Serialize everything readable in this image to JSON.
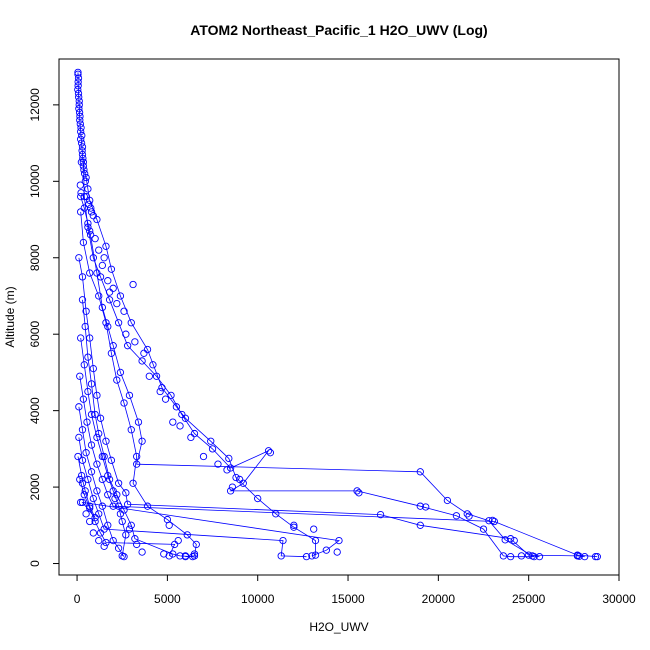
{
  "chart_data": {
    "type": "line",
    "title": "ATOM2 Northeast_Pacific_1 H2O_UWV (Log)",
    "xlabel": "H2O_UWV",
    "ylabel": "Altitude (m)",
    "xlim": [
      -1000,
      30000
    ],
    "ylim": [
      -300,
      13200
    ],
    "x_ticks": [
      0,
      5000,
      10000,
      15000,
      20000,
      25000,
      30000
    ],
    "x_tick_labels": [
      "0",
      "5000",
      "10000",
      "15000",
      "20000",
      "25000",
      "30000"
    ],
    "y_ticks": [
      0,
      2000,
      4000,
      6000,
      8000,
      10000,
      12000
    ],
    "y_tick_labels": [
      "0",
      "2000",
      "4000",
      "6000",
      "8000",
      "10000",
      "12000"
    ],
    "grid": false,
    "series_color": "#0000ff",
    "segments": [
      [
        [
          50,
          12850
        ],
        [
          60,
          12600
        ],
        [
          80,
          12300
        ],
        [
          120,
          12000
        ],
        [
          150,
          11600
        ],
        [
          200,
          11300
        ],
        [
          250,
          11000
        ],
        [
          300,
          10700
        ],
        [
          350,
          10400
        ],
        [
          500,
          10100
        ],
        [
          600,
          9800
        ],
        [
          700,
          9500
        ],
        [
          1100,
          9000
        ],
        [
          1600,
          8300
        ],
        [
          1900,
          7700
        ],
        [
          2400,
          7000
        ],
        [
          3000,
          6300
        ],
        [
          3900,
          5600
        ],
        [
          4700,
          4600
        ],
        [
          5500,
          4100
        ],
        [
          6000,
          3800
        ],
        [
          7400,
          3200
        ],
        [
          8400,
          2750
        ],
        [
          8800,
          2250
        ],
        [
          10000,
          1700
        ],
        [
          11000,
          1300
        ],
        [
          12000,
          950
        ],
        [
          13200,
          600
        ],
        [
          13200,
          220
        ]
      ],
      [
        [
          350,
          10500
        ],
        [
          400,
          9600
        ],
        [
          600,
          8800
        ],
        [
          900,
          8000
        ],
        [
          1300,
          7500
        ],
        [
          1800,
          6900
        ],
        [
          2300,
          6300
        ],
        [
          2800,
          5700
        ],
        [
          3600,
          5300
        ],
        [
          4400,
          4900
        ],
        [
          5200,
          4400
        ],
        [
          5800,
          3900
        ],
        [
          6500,
          3400
        ],
        [
          7500,
          3000
        ],
        [
          8500,
          2500
        ],
        [
          10600,
          2950
        ],
        [
          9200,
          2100
        ],
        [
          8500,
          1900
        ],
        [
          15500,
          1900
        ],
        [
          19000,
          1500
        ],
        [
          21000,
          1250
        ],
        [
          22500,
          900
        ],
        [
          23600,
          200
        ],
        [
          24000,
          180
        ],
        [
          25300,
          180
        ]
      ],
      [
        [
          200,
          9600
        ],
        [
          400,
          9300
        ],
        [
          700,
          8700
        ],
        [
          1100,
          7600
        ],
        [
          1400,
          6700
        ],
        [
          1700,
          6200
        ],
        [
          2000,
          5700
        ],
        [
          2400,
          5000
        ],
        [
          2900,
          4400
        ],
        [
          3400,
          3700
        ],
        [
          3600,
          3200
        ],
        [
          3300,
          2600
        ],
        [
          19000,
          2400
        ],
        [
          20500,
          1650
        ],
        [
          21600,
          1300
        ],
        [
          22800,
          1120
        ],
        [
          23700,
          620
        ],
        [
          25200,
          200
        ],
        [
          25600,
          180
        ]
      ],
      [
        [
          200,
          9200
        ],
        [
          350,
          8400
        ],
        [
          700,
          7600
        ],
        [
          1200,
          7000
        ],
        [
          1600,
          6300
        ],
        [
          1900,
          5500
        ],
        [
          2200,
          4800
        ],
        [
          2600,
          4200
        ],
        [
          3000,
          3500
        ],
        [
          3300,
          2800
        ],
        [
          3100,
          2100
        ],
        [
          3900,
          1500
        ],
        [
          5000,
          1150
        ],
        [
          6100,
          750
        ],
        [
          6600,
          500
        ],
        [
          6500,
          200
        ],
        [
          6000,
          180
        ]
      ],
      [
        [
          100,
          8000
        ],
        [
          300,
          7500
        ],
        [
          500,
          6600
        ],
        [
          700,
          5900
        ],
        [
          900,
          5100
        ],
        [
          1100,
          4400
        ],
        [
          1300,
          3800
        ],
        [
          1600,
          3200
        ],
        [
          1900,
          2700
        ],
        [
          2300,
          2100
        ],
        [
          2700,
          1850
        ],
        [
          2800,
          1550
        ],
        [
          16800,
          1280
        ],
        [
          19000,
          1000
        ],
        [
          24000,
          650
        ],
        [
          25000,
          220
        ],
        [
          27700,
          200
        ],
        [
          28100,
          180
        ]
      ],
      [
        [
          300,
          6900
        ],
        [
          450,
          6200
        ],
        [
          600,
          5400
        ],
        [
          800,
          4700
        ],
        [
          1000,
          3900
        ],
        [
          1200,
          3400
        ],
        [
          1500,
          2800
        ],
        [
          1800,
          2200
        ],
        [
          2200,
          1800
        ],
        [
          2600,
          1400
        ],
        [
          3000,
          1000
        ],
        [
          3200,
          650
        ],
        [
          5300,
          250
        ],
        [
          5700,
          200
        ],
        [
          6400,
          180
        ]
      ],
      [
        [
          200,
          5900
        ],
        [
          400,
          5200
        ],
        [
          600,
          4500
        ],
        [
          800,
          3900
        ],
        [
          1100,
          3300
        ],
        [
          1400,
          2800
        ],
        [
          1700,
          2300
        ],
        [
          2000,
          1900
        ],
        [
          2300,
          1500
        ],
        [
          2500,
          1100
        ],
        [
          2700,
          750
        ],
        [
          2500,
          200
        ]
      ],
      [
        [
          150,
          4900
        ],
        [
          350,
          4300
        ],
        [
          550,
          3700
        ],
        [
          800,
          3100
        ],
        [
          1100,
          2600
        ],
        [
          1400,
          2200
        ],
        [
          1700,
          1800
        ],
        [
          2000,
          1500
        ],
        [
          23100,
          1100
        ],
        [
          27700,
          220
        ],
        [
          28800,
          180
        ]
      ],
      [
        [
          100,
          4100
        ],
        [
          300,
          3500
        ],
        [
          500,
          2900
        ],
        [
          800,
          2400
        ],
        [
          1100,
          1900
        ],
        [
          1400,
          1500
        ],
        [
          1700,
          1000
        ],
        [
          2000,
          600
        ],
        [
          2300,
          400
        ],
        [
          2600,
          180
        ]
      ],
      [
        [
          100,
          3300
        ],
        [
          300,
          2700
        ],
        [
          600,
          2200
        ],
        [
          900,
          1700
        ],
        [
          1200,
          1300
        ],
        [
          1500,
          900
        ],
        [
          11400,
          600
        ],
        [
          11300,
          200
        ],
        [
          12700,
          180
        ]
      ],
      [
        [
          50,
          2800
        ],
        [
          250,
          2300
        ],
        [
          450,
          1900
        ],
        [
          700,
          1500
        ],
        [
          1000,
          1200
        ],
        [
          300,
          1600
        ],
        [
          14500,
          600
        ],
        [
          13800,
          350
        ],
        [
          13000,
          200
        ]
      ],
      [
        [
          150,
          2200
        ],
        [
          400,
          1800
        ],
        [
          700,
          1450
        ],
        [
          1000,
          1100
        ],
        [
          1300,
          800
        ],
        [
          1600,
          550
        ],
        [
          5400,
          500
        ],
        [
          5100,
          200
        ]
      ]
    ],
    "scatter_points": [
      [
        50,
        12800
      ],
      [
        80,
        12700
      ],
      [
        60,
        12500
      ],
      [
        40,
        12400
      ],
      [
        90,
        12200
      ],
      [
        120,
        12100
      ],
      [
        100,
        11900
      ],
      [
        140,
        11800
      ],
      [
        160,
        11700
      ],
      [
        180,
        11500
      ],
      [
        220,
        11400
      ],
      [
        260,
        11200
      ],
      [
        200,
        11100
      ],
      [
        300,
        10900
      ],
      [
        280,
        10800
      ],
      [
        320,
        10600
      ],
      [
        240,
        10500
      ],
      [
        380,
        10300
      ],
      [
        420,
        10200
      ],
      [
        460,
        10000
      ],
      [
        180,
        9900
      ],
      [
        220,
        9700
      ],
      [
        520,
        9600
      ],
      [
        650,
        9400
      ],
      [
        760,
        9300
      ],
      [
        800,
        9200
      ],
      [
        900,
        9100
      ],
      [
        600,
        8900
      ],
      [
        750,
        8600
      ],
      [
        1000,
        8500
      ],
      [
        1200,
        8200
      ],
      [
        1500,
        8000
      ],
      [
        1400,
        7800
      ],
      [
        1700,
        7400
      ],
      [
        2000,
        7200
      ],
      [
        1800,
        7100
      ],
      [
        2200,
        6800
      ],
      [
        2600,
        6600
      ],
      [
        3100,
        7300
      ],
      [
        2700,
        6000
      ],
      [
        3200,
        5800
      ],
      [
        3700,
        5500
      ],
      [
        4200,
        5200
      ],
      [
        4000,
        4900
      ],
      [
        4600,
        4500
      ],
      [
        4900,
        4300
      ],
      [
        5300,
        3700
      ],
      [
        5700,
        3600
      ],
      [
        6300,
        3300
      ],
      [
        7000,
        2800
      ],
      [
        7800,
        2600
      ],
      [
        8300,
        2450
      ],
      [
        9000,
        2200
      ],
      [
        8600,
        2000
      ],
      [
        10700,
        2900
      ],
      [
        12000,
        1000
      ],
      [
        13100,
        900
      ],
      [
        14400,
        300
      ],
      [
        15600,
        1850
      ],
      [
        19300,
        1480
      ],
      [
        21700,
        1240
      ],
      [
        23000,
        1130
      ],
      [
        24200,
        600
      ],
      [
        24600,
        200
      ],
      [
        27800,
        190
      ],
      [
        28700,
        180
      ],
      [
        5100,
        1000
      ],
      [
        5600,
        600
      ],
      [
        6000,
        200
      ],
      [
        200,
        1600
      ],
      [
        300,
        2100
      ],
      [
        500,
        1300
      ],
      [
        700,
        1100
      ],
      [
        900,
        800
      ],
      [
        1200,
        600
      ],
      [
        1500,
        450
      ],
      [
        2100,
        1700
      ],
      [
        2400,
        1300
      ],
      [
        2900,
        900
      ],
      [
        3300,
        500
      ],
      [
        3600,
        300
      ],
      [
        4800,
        250
      ],
      [
        6500,
        250
      ]
    ]
  }
}
